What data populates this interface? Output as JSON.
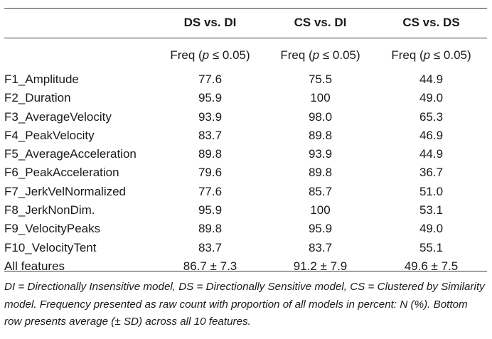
{
  "table": {
    "headers": [
      "",
      "DS vs. DI",
      "CS vs. DI",
      "CS vs. DS"
    ],
    "subheader": {
      "prefix": "Freq (",
      "p": "p",
      "suffix": " ≤ 0.05)"
    },
    "rows": [
      {
        "feature": "F1_Amplitude",
        "values": [
          "77.6",
          "75.5",
          "44.9"
        ]
      },
      {
        "feature": "F2_Duration",
        "values": [
          "95.9",
          "100",
          "49.0"
        ]
      },
      {
        "feature": "F3_AverageVelocity",
        "values": [
          "93.9",
          "98.0",
          "65.3"
        ]
      },
      {
        "feature": "F4_PeakVelocity",
        "values": [
          "83.7",
          "89.8",
          "46.9"
        ]
      },
      {
        "feature": "F5_AverageAcceleration",
        "values": [
          "89.8",
          "93.9",
          "44.9"
        ]
      },
      {
        "feature": "F6_PeakAcceleration",
        "values": [
          "79.6",
          "89.8",
          "36.7"
        ]
      },
      {
        "feature": "F7_JerkVelNormalized",
        "values": [
          "77.6",
          "85.7",
          "51.0"
        ]
      },
      {
        "feature": "F8_JerkNonDim.",
        "values": [
          "95.9",
          "100",
          "53.1"
        ]
      },
      {
        "feature": "F9_VelocityPeaks",
        "values": [
          "89.8",
          "95.9",
          "49.0"
        ]
      },
      {
        "feature": "F10_VelocityTent",
        "values": [
          "83.7",
          "83.7",
          "55.1"
        ]
      },
      {
        "feature": "All features",
        "values": [
          "86.7 ± 7.3",
          "91.2 ± 7.9",
          "49.6 ± 7.5"
        ]
      }
    ]
  },
  "footnote": "DI = Directionally Insensitive model, DS = Directionally Sensitive model, CS = Clustered by Similarity model. Frequency presented as raw count with proportion of all models in percent: N (%). Bottom row presents average (± SD) across all 10 features."
}
